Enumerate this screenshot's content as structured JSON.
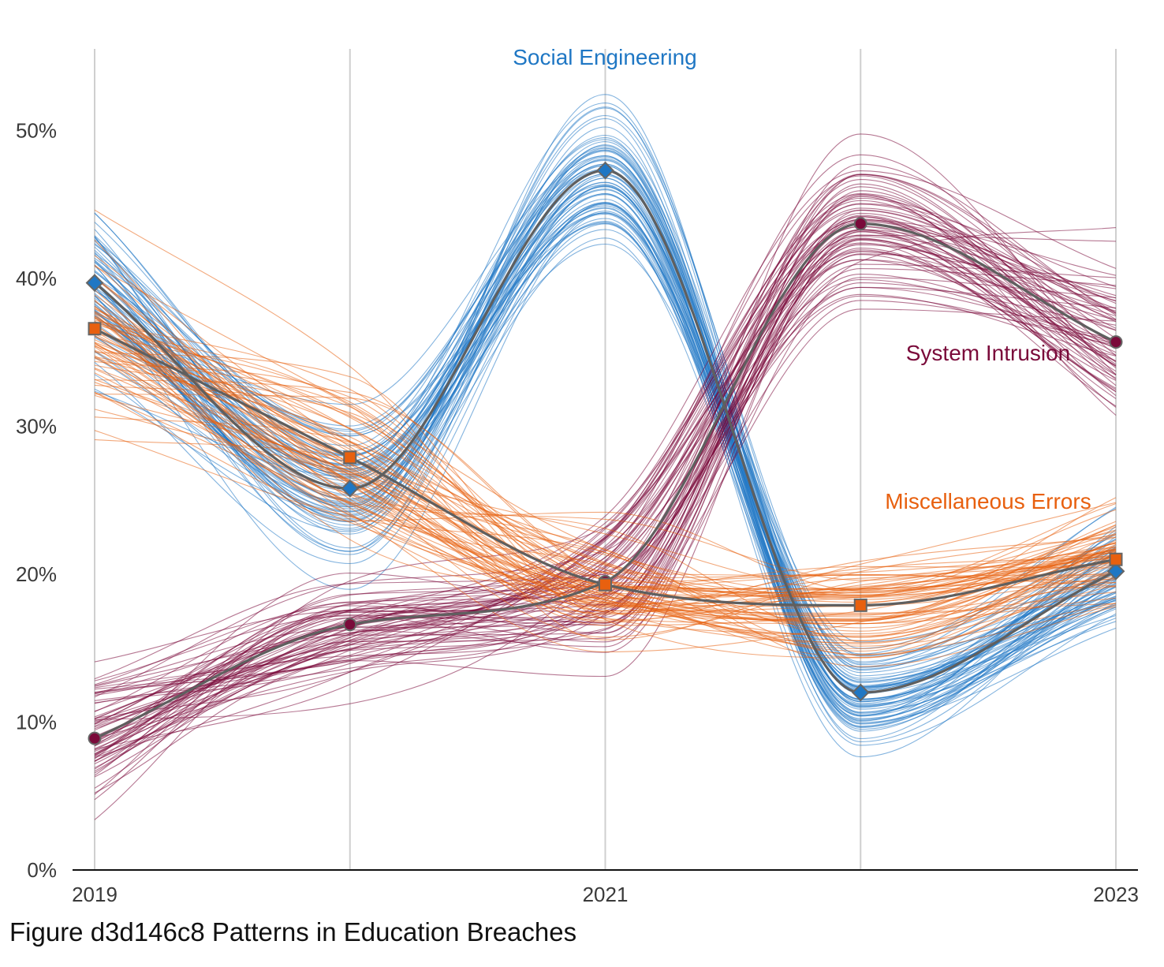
{
  "chart_data": {
    "type": "line",
    "caption": "Figure d3d146c8 Patterns in Education Breaches",
    "x": [
      2019,
      2020,
      2021,
      2022,
      2023
    ],
    "x_tick_labels": [
      "2019",
      "",
      "2021",
      "",
      "2023"
    ],
    "y_ticks": [
      0,
      10,
      20,
      30,
      40,
      50
    ],
    "y_tick_labels": [
      "0%",
      "10%",
      "20%",
      "30%",
      "40%",
      "50%"
    ],
    "ylim": [
      0,
      55
    ],
    "grid": "vertical",
    "series": [
      {
        "name": "Social Engineering",
        "color": "#1f77c4",
        "marker": "diamond",
        "values": [
          39.7,
          25.8,
          47.3,
          12.0,
          20.2
        ]
      },
      {
        "name": "System Intrusion",
        "color": "#7a0a3a",
        "marker": "circle",
        "values": [
          8.9,
          16.6,
          19.5,
          43.7,
          35.7
        ]
      },
      {
        "name": "Miscellaneous Errors",
        "color": "#e8600f",
        "marker": "square",
        "values": [
          36.6,
          27.9,
          19.3,
          17.9,
          21.0
        ]
      }
    ]
  }
}
